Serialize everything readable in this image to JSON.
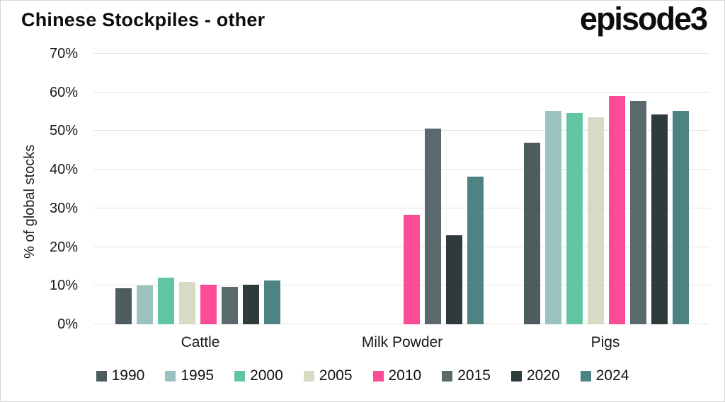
{
  "header": {
    "title": "Chinese Stockpiles - other",
    "logo_text": "episode3"
  },
  "chart_data": {
    "type": "bar",
    "title": "Chinese Stockpiles - other",
    "xlabel": "",
    "ylabel": "% of global stocks",
    "ylim": [
      0,
      70
    ],
    "ytick_labels": [
      "0%",
      "10%",
      "20%",
      "30%",
      "40%",
      "50%",
      "60%",
      "70%"
    ],
    "ytick_values": [
      0,
      10,
      20,
      30,
      40,
      50,
      60,
      70
    ],
    "grid": true,
    "legend_position": "bottom",
    "categories": [
      "Cattle",
      "Milk Powder",
      "Pigs"
    ],
    "series": [
      {
        "name": "1990",
        "color": "#4d5d5f",
        "values": [
          9.4,
          null,
          47.0
        ]
      },
      {
        "name": "1995",
        "color": "#9cc2c0",
        "values": [
          10.0,
          null,
          55.2
        ]
      },
      {
        "name": "2000",
        "color": "#62c5a2",
        "values": [
          12.1,
          null,
          54.7
        ]
      },
      {
        "name": "2005",
        "color": "#d8dac4",
        "values": [
          11.0,
          null,
          53.6
        ]
      },
      {
        "name": "2010",
        "color": "#fc4b97",
        "values": [
          10.2,
          28.3,
          59.0
        ]
      },
      {
        "name": "2015",
        "color": "#5a696b",
        "values": [
          9.7,
          50.7,
          57.8
        ]
      },
      {
        "name": "2020",
        "color": "#2f3a3c",
        "values": [
          10.3,
          23.0,
          54.3
        ]
      },
      {
        "name": "2024",
        "color": "#4d8383",
        "values": [
          11.4,
          38.2,
          55.2
        ]
      }
    ]
  }
}
